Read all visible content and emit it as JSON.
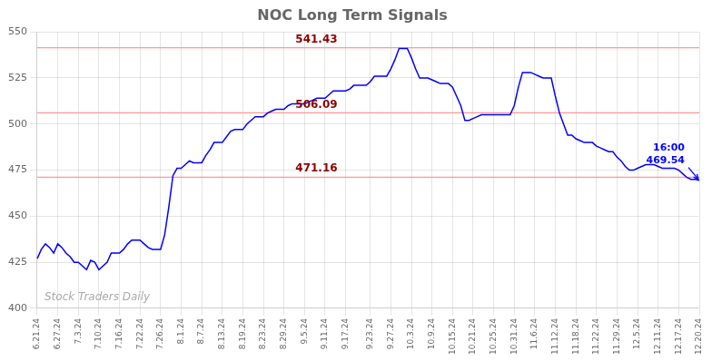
{
  "chart_data": {
    "type": "line",
    "title": "NOC Long Term Signals",
    "categories": [
      "6.21.24",
      null,
      null,
      null,
      null,
      "6.27.24",
      null,
      null,
      null,
      null,
      "7.3.24",
      null,
      null,
      null,
      null,
      "7.10.24",
      null,
      null,
      null,
      null,
      "7.16.24",
      null,
      null,
      null,
      null,
      "7.22.24",
      null,
      null,
      null,
      null,
      "7.26.24",
      null,
      null,
      null,
      null,
      "8.1.24",
      null,
      null,
      null,
      null,
      "8.7.24",
      null,
      null,
      null,
      null,
      "8.13.24",
      null,
      null,
      null,
      null,
      "8.19.24",
      null,
      null,
      null,
      null,
      "8.23.24",
      null,
      null,
      null,
      null,
      "8.29.24",
      null,
      null,
      null,
      null,
      "9.5.24",
      null,
      null,
      null,
      null,
      "9.11.24",
      null,
      null,
      null,
      null,
      "9.17.24",
      null,
      null,
      null,
      null,
      null,
      "9.23.24",
      null,
      null,
      null,
      null,
      "9.27.24",
      null,
      null,
      null,
      null,
      "10.3.24",
      null,
      null,
      null,
      null,
      "10.9.24",
      null,
      null,
      null,
      null,
      "10.15.24",
      null,
      null,
      null,
      null,
      "10.21.24",
      null,
      null,
      null,
      null,
      "10.25.24",
      null,
      null,
      null,
      null,
      "10.31.24",
      null,
      null,
      null,
      null,
      "11.6.24",
      null,
      null,
      null,
      null,
      "11.12.24",
      null,
      null,
      null,
      null,
      "11.18.24",
      null,
      null,
      null,
      null,
      "11.22.24",
      null,
      null,
      null,
      null,
      "11.29.24",
      null,
      null,
      null,
      null,
      "12.5.24",
      null,
      null,
      null,
      null,
      "12.11.24",
      null,
      null,
      null,
      null,
      "12.17.24",
      null,
      null,
      null,
      null,
      "12.20.24"
    ],
    "values": [
      427,
      432,
      435,
      433,
      430,
      435,
      433,
      430,
      428,
      425,
      425,
      423,
      421,
      426,
      425,
      421,
      423,
      425,
      430,
      430,
      430,
      432,
      435,
      437,
      437,
      437,
      435,
      433,
      432,
      432,
      432,
      440,
      455,
      472,
      476,
      476,
      478,
      480,
      479,
      479,
      479,
      483,
      486,
      490,
      490,
      490,
      493,
      496,
      497,
      497,
      497,
      500,
      502,
      504,
      504,
      504,
      506,
      507,
      508,
      508,
      508,
      510,
      511,
      511,
      511,
      511,
      512,
      513,
      514,
      514,
      514,
      516,
      518,
      518,
      518,
      518,
      519,
      521,
      521,
      521,
      521,
      523,
      526,
      526,
      526,
      526,
      530,
      535,
      541,
      541,
      541,
      536,
      530,
      525,
      525,
      525,
      524,
      523,
      522,
      522,
      522,
      520,
      515,
      510,
      502,
      502,
      503,
      504,
      505,
      505,
      505,
      505,
      505,
      505,
      505,
      505,
      510,
      520,
      528,
      528,
      528,
      527,
      526,
      525,
      525,
      525,
      515,
      506,
      500,
      494,
      494,
      492,
      491,
      490,
      490,
      490,
      488,
      487,
      486,
      485,
      485,
      482,
      480,
      477,
      475,
      475,
      476,
      477,
      478,
      478,
      478,
      477,
      476,
      476,
      476,
      476,
      475,
      473,
      471,
      470,
      470,
      469.54
    ],
    "color": "blue",
    "ylim": [
      400,
      550
    ],
    "yticks": [
      400,
      425,
      450,
      475,
      500,
      525,
      550
    ],
    "grid": true,
    "annotations": [
      {
        "type": "hline",
        "y": 471.16,
        "text": "471.16",
        "line_color": "#ff9999",
        "color": "#8b0000"
      },
      {
        "type": "hline",
        "y": 506.09,
        "text": "506.09",
        "line_color": "#ff9999",
        "color": "#8b0000"
      },
      {
        "type": "hline",
        "y": 541.43,
        "text": "541.43",
        "line_color": "#ff9999",
        "color": "#8b0000"
      },
      {
        "type": "last_point",
        "texts": [
          "16:00",
          "469.54"
        ],
        "color": "blue"
      },
      {
        "type": "watermark",
        "text": "Stock Traders Daily",
        "color": "#aaaaaa"
      }
    ]
  }
}
